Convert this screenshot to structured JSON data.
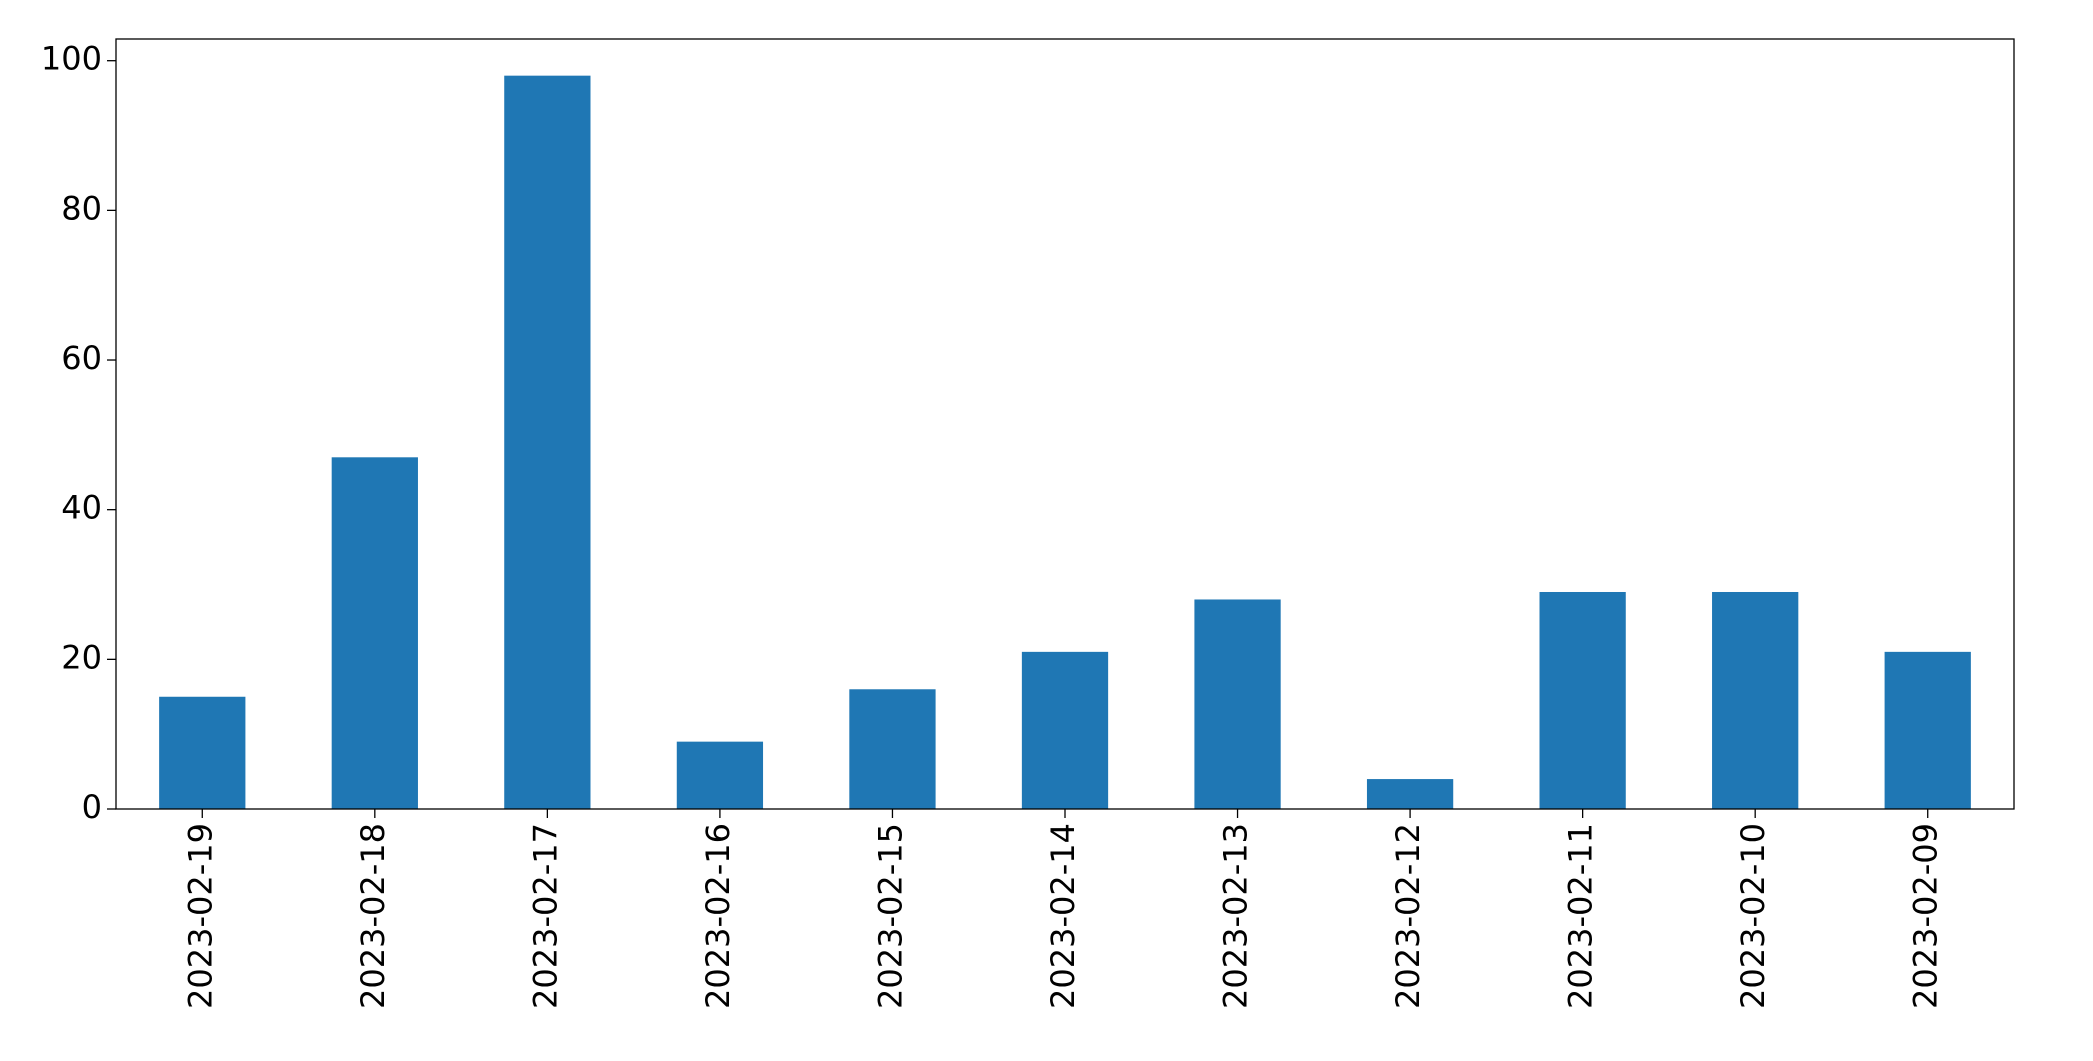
{
  "chart_data": {
    "type": "bar",
    "categories": [
      "2023-02-19",
      "2023-02-18",
      "2023-02-17",
      "2023-02-16",
      "2023-02-15",
      "2023-02-14",
      "2023-02-13",
      "2023-02-12",
      "2023-02-11",
      "2023-02-10",
      "2023-02-09"
    ],
    "values": [
      15,
      47,
      98,
      9,
      16,
      21,
      28,
      4,
      29,
      29,
      21
    ],
    "color": "#1f77b4",
    "ylim": [
      0,
      102.9
    ],
    "yticks": [
      0,
      20,
      40,
      60,
      80,
      100
    ],
    "grid": false
  }
}
